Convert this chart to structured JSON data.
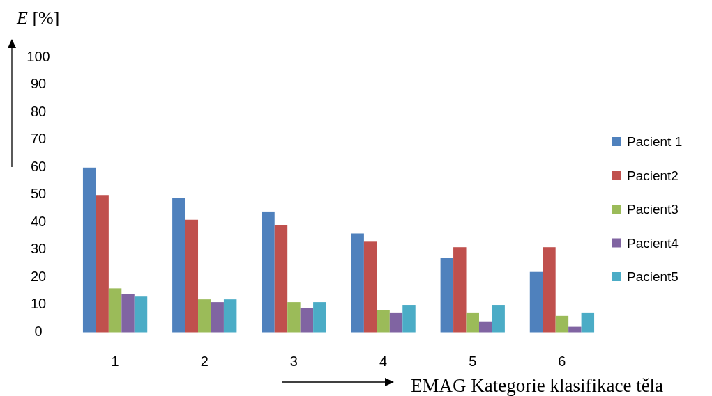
{
  "chart_data": {
    "type": "bar",
    "xlabel": "EMAG Kategorie klasifikace těla",
    "ylabel": "E [%]",
    "categories": [
      "1",
      "2",
      "3",
      "4",
      "5",
      "6"
    ],
    "series": [
      {
        "name": "Pacient 1",
        "color": "#4f81bd",
        "values": [
          60,
          49,
          44,
          36,
          27,
          22
        ]
      },
      {
        "name": "Pacient2",
        "color": "#c0504d",
        "values": [
          50,
          41,
          39,
          33,
          31,
          31
        ]
      },
      {
        "name": "Pacient3",
        "color": "#9bbb59",
        "values": [
          16,
          12,
          11,
          8,
          7,
          6
        ]
      },
      {
        "name": "Pacient4",
        "color": "#8064a2",
        "values": [
          14,
          11,
          9,
          7,
          4,
          2
        ]
      },
      {
        "name": "Pacient5",
        "color": "#4bacc6",
        "values": [
          13,
          12,
          11,
          10,
          10,
          7
        ]
      }
    ],
    "ylim": [
      0,
      100
    ],
    "yticks": [
      0,
      10,
      20,
      30,
      40,
      50,
      60,
      70,
      80,
      90,
      100
    ],
    "grid": false,
    "legend": "right"
  }
}
